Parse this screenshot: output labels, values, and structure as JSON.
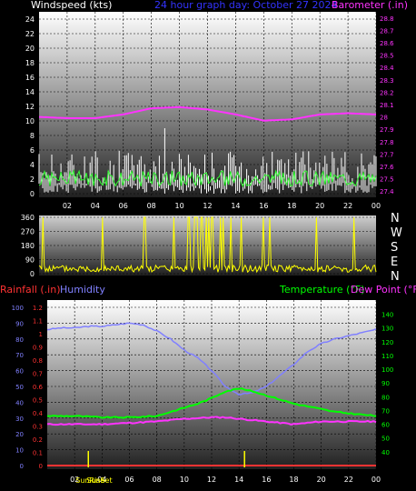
{
  "header": {
    "windspeed_label": "Windspeed (kts)",
    "title": "24 hour graph day:  October 27 2024",
    "barometer_label": "Barometer (.in)"
  },
  "lower_header": {
    "rainfall_label": "Rainfall (.in)",
    "humidity_label": "Humidity",
    "temperature_label": "Temperature (°F)",
    "dewpoint_label": "Dew Point (°F)"
  },
  "compass": [
    "N",
    "W",
    "S",
    "E",
    "N"
  ],
  "sun_labels": {
    "sunrise": "SunRise",
    "sunset": "SunSet"
  },
  "colors": {
    "windspeed_label": "#ffffff",
    "title": "#3333ff",
    "barometer": "#ff33ff",
    "rainfall": "#ff3333",
    "humidity": "#8080ff",
    "temperature": "#00ff00",
    "dewpoint": "#ff33ff",
    "direction": "#ffff00",
    "wind_gust": "#ffffff",
    "wind_avg": "#33ff33",
    "sun_marker": "#ffff00"
  },
  "chart_data": [
    {
      "type": "line",
      "name": "wind-barometer",
      "x_ticks": [
        "02",
        "04",
        "06",
        "08",
        "10",
        "12",
        "14",
        "16",
        "18",
        "20",
        "22",
        "00"
      ],
      "y_left": {
        "label": "Windspeed (kts)",
        "ticks": [
          0,
          2,
          4,
          6,
          8,
          10,
          12,
          14,
          16,
          18,
          20,
          22,
          24
        ],
        "range": [
          0,
          25
        ]
      },
      "y_right": {
        "label": "Barometer (.in)",
        "ticks": [
          "27.4",
          "27.5",
          "27.6",
          "27.7",
          "27.8",
          "27.9",
          "28",
          "28.1",
          "28.2",
          "28.3",
          "28.4",
          "28.5",
          "28.6",
          "28.7",
          "28.8"
        ],
        "range": [
          27.35,
          28.85
        ]
      },
      "barometer": {
        "hours": [
          0,
          2,
          4,
          6,
          8,
          10,
          12,
          14,
          16,
          18,
          20,
          22,
          24
        ],
        "values": [
          28.0,
          27.99,
          27.99,
          28.02,
          28.07,
          28.08,
          28.06,
          28.02,
          27.97,
          27.98,
          28.02,
          28.03,
          28.02
        ]
      },
      "wind_gust_peak": {
        "hour": 9.0,
        "value": 9
      },
      "wind_typical_max": 6,
      "grid": true
    },
    {
      "type": "line",
      "name": "wind-direction",
      "y_ticks": [
        0,
        90,
        180,
        270,
        360
      ],
      "range": [
        0,
        360
      ],
      "series": "direction"
    },
    {
      "type": "line",
      "name": "temp-humidity-rain",
      "x_ticks": [
        "02",
        "04",
        "06",
        "08",
        "10",
        "12",
        "14",
        "16",
        "18",
        "20",
        "22",
        "00"
      ],
      "y_humidity": {
        "label": "Humidity",
        "ticks": [
          0,
          10,
          20,
          30,
          40,
          50,
          60,
          70,
          80,
          90,
          100
        ],
        "range": [
          0,
          100
        ]
      },
      "y_rain": {
        "label": "Rainfall (.in)",
        "ticks": [
          "0",
          "0.1",
          "0.2",
          "0.3",
          "0.4",
          "0.5",
          "0.6",
          "0.7",
          "0.8",
          "0.9",
          "1",
          "1.1",
          "1.2"
        ],
        "range": [
          0,
          1.2
        ]
      },
      "y_temp": {
        "label": "Temperature (°F)",
        "ticks": [
          40,
          50,
          60,
          70,
          80,
          90,
          100,
          110,
          120,
          130,
          140
        ],
        "range": [
          30,
          145
        ]
      },
      "humidity": {
        "hours": [
          0,
          1,
          2,
          3,
          4,
          5,
          6,
          7,
          8,
          9,
          10,
          11,
          12,
          13,
          14,
          15,
          16,
          17,
          18,
          19,
          20,
          21,
          22,
          23,
          24
        ],
        "values": [
          86,
          87,
          87,
          88,
          88,
          89,
          90,
          89,
          85,
          80,
          73,
          68,
          60,
          50,
          45,
          46,
          50,
          57,
          64,
          72,
          77,
          80,
          82,
          84,
          86
        ]
      },
      "temperature": {
        "hours": [
          0,
          2,
          4,
          6,
          8,
          9,
          10,
          11,
          12,
          13,
          14,
          15,
          16,
          17,
          18,
          19,
          20,
          21,
          22,
          23,
          24
        ],
        "values": [
          66,
          66,
          65,
          65,
          66,
          69,
          72,
          75,
          79,
          84,
          86,
          84,
          81,
          78,
          75,
          73,
          71,
          69,
          68,
          67,
          66
        ]
      },
      "dewpoint": {
        "hours": [
          0,
          2,
          4,
          6,
          8,
          10,
          12,
          13,
          14,
          16,
          18,
          20,
          22,
          24
        ],
        "values": [
          60,
          60,
          60,
          61,
          62,
          64,
          65,
          65,
          64,
          62,
          60,
          62,
          62,
          62
        ]
      },
      "rainfall": {
        "hours": [
          0,
          24
        ],
        "values": [
          0,
          0
        ]
      },
      "sunrise_hour": 3.0,
      "sunset_hour": 14.4,
      "grid": true
    }
  ]
}
